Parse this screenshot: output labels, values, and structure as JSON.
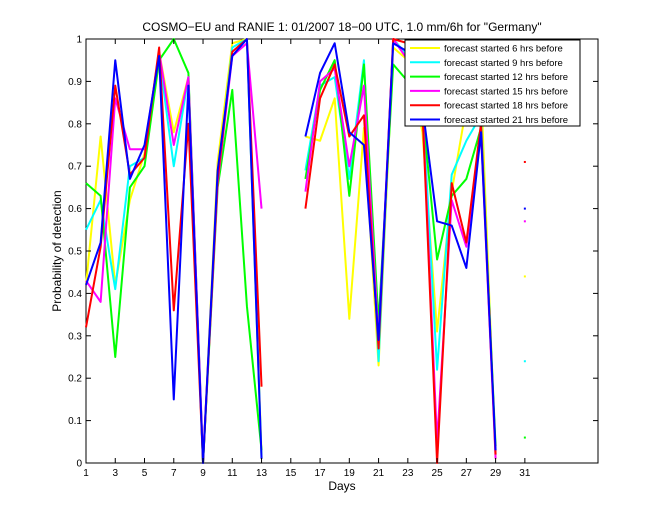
{
  "chart_data": {
    "type": "line",
    "title": "COSMO−EU and RANIE 1: 01/2007 18−00 UTC, 1.0 mm/6h for \"Germany\"",
    "xlabel": "Days",
    "ylabel": "Probability of detection",
    "xlim": [
      1,
      36
    ],
    "ylim": [
      0,
      1
    ],
    "xticks": [
      1,
      3,
      5,
      7,
      9,
      11,
      13,
      15,
      17,
      19,
      21,
      23,
      25,
      27,
      29,
      31
    ],
    "yticks": [
      0,
      0.1,
      0.2,
      0.3,
      0.4,
      0.5,
      0.6,
      0.7,
      0.8,
      0.9,
      1
    ],
    "grid": false,
    "legend_position": "top-right",
    "series": [
      {
        "name": "forecast started 6 hrs before",
        "color": "#ffff00",
        "values": [
          0.42,
          0.77,
          0.42,
          0.62,
          0.73,
          0.97,
          0.78,
          0.91,
          0.0,
          0.71,
          0.99,
          1.0,
          0.02,
          null,
          null,
          0.77,
          0.76,
          0.86,
          0.34,
          0.79,
          0.23,
          0.98,
          0.95,
          0.78,
          0.31,
          0.64,
          0.84,
          0.89,
          0.01,
          null,
          0.44
        ]
      },
      {
        "name": "forecast started 9 hrs before",
        "color": "#00ffff",
        "values": [
          0.55,
          0.62,
          0.41,
          0.7,
          0.72,
          0.96,
          0.7,
          0.91,
          0.0,
          0.67,
          0.98,
          1.0,
          0.01,
          null,
          null,
          0.69,
          0.89,
          0.91,
          0.67,
          0.95,
          0.24,
          1.0,
          0.96,
          0.85,
          0.22,
          0.68,
          0.76,
          0.82,
          0.02,
          null,
          0.24
        ]
      },
      {
        "name": "forecast started 12 hrs before",
        "color": "#00ff00",
        "values": [
          0.66,
          0.63,
          0.25,
          0.65,
          0.7,
          0.95,
          1.0,
          0.92,
          0.0,
          0.65,
          0.88,
          0.37,
          0.03,
          null,
          null,
          0.67,
          0.88,
          0.95,
          0.63,
          0.94,
          0.33,
          0.94,
          0.9,
          0.83,
          0.48,
          0.63,
          0.67,
          0.79,
          0.04,
          null,
          0.06
        ]
      },
      {
        "name": "forecast started 15 hrs before",
        "color": "#ff00ff",
        "values": [
          0.43,
          0.38,
          0.86,
          0.74,
          0.74,
          0.97,
          0.75,
          0.91,
          0.01,
          0.66,
          0.96,
          0.99,
          0.6,
          null,
          null,
          0.64,
          0.9,
          0.93,
          0.7,
          0.89,
          0.29,
          1.0,
          0.95,
          0.84,
          0.05,
          0.62,
          0.51,
          0.78,
          0.01,
          null,
          0.57
        ]
      },
      {
        "name": "forecast started 18 hrs before",
        "color": "#ff0000",
        "values": [
          0.32,
          0.51,
          0.89,
          0.68,
          0.72,
          0.98,
          0.36,
          0.8,
          0.0,
          0.67,
          0.97,
          1.0,
          0.18,
          null,
          null,
          0.6,
          0.86,
          0.94,
          0.77,
          0.82,
          0.27,
          1.0,
          0.99,
          0.83,
          0.0,
          0.66,
          0.52,
          0.8,
          0.02,
          null,
          0.71
        ]
      },
      {
        "name": "forecast started 21 hrs before",
        "color": "#0000ff",
        "values": [
          0.42,
          0.52,
          0.95,
          0.67,
          0.75,
          0.96,
          0.15,
          0.89,
          0.0,
          0.69,
          0.96,
          1.0,
          0.01,
          null,
          null,
          0.77,
          0.92,
          0.99,
          0.78,
          0.75,
          0.29,
          0.99,
          0.97,
          0.84,
          0.57,
          0.56,
          0.46,
          0.78,
          0.03,
          null,
          0.6
        ]
      }
    ]
  }
}
